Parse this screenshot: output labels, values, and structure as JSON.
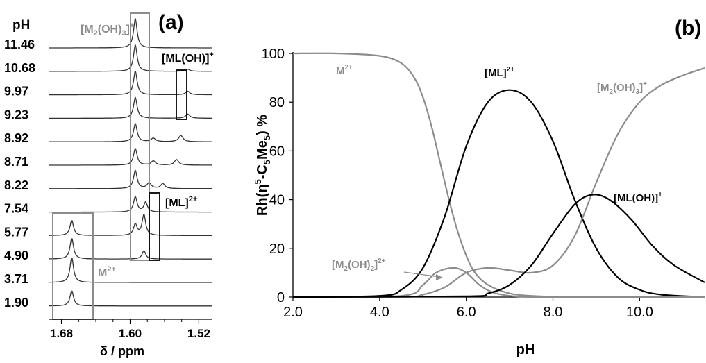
{
  "chart_data": [
    {
      "panel_label": "(a)",
      "type": "line",
      "subtype": "stacked NMR spectra",
      "ylabel": "pH",
      "xlabel": "δ / ppm",
      "x_ticks": [
        "1.68",
        "1.60",
        "1.52"
      ],
      "x_reversed": true,
      "xlim": [
        1.695,
        1.505
      ],
      "spectra": [
        {
          "pH": "11.46",
          "peaks": [
            {
              "ppm": 1.594,
              "height": 42,
              "width": 0.0025
            }
          ]
        },
        {
          "pH": "10.68",
          "peaks": [
            {
              "ppm": 1.594,
              "height": 38,
              "width": 0.0025
            },
            {
              "ppm": 1.533,
              "height": 3,
              "width": 0.003
            }
          ]
        },
        {
          "pH": "9.97",
          "peaks": [
            {
              "ppm": 1.594,
              "height": 34,
              "width": 0.0025
            },
            {
              "ppm": 1.533,
              "height": 5,
              "width": 0.003
            }
          ]
        },
        {
          "pH": "9.23",
          "peaks": [
            {
              "ppm": 1.594,
              "height": 30,
              "width": 0.0025
            },
            {
              "ppm": 1.533,
              "height": 6,
              "width": 0.003
            }
          ]
        },
        {
          "pH": "8.92",
          "peaks": [
            {
              "ppm": 1.594,
              "height": 26,
              "width": 0.0025
            },
            {
              "ppm": 1.573,
              "height": 5,
              "width": 0.003
            },
            {
              "ppm": 1.541,
              "height": 9,
              "width": 0.003
            }
          ]
        },
        {
          "pH": "8.71",
          "peaks": [
            {
              "ppm": 1.594,
              "height": 24,
              "width": 0.0025
            },
            {
              "ppm": 1.573,
              "height": 6,
              "width": 0.003
            },
            {
              "ppm": 1.546,
              "height": 8,
              "width": 0.003
            }
          ]
        },
        {
          "pH": "8.22",
          "peaks": [
            {
              "ppm": 1.594,
              "height": 26,
              "width": 0.0025
            },
            {
              "ppm": 1.578,
              "height": 8,
              "width": 0.003
            },
            {
              "ppm": 1.562,
              "height": 7,
              "width": 0.003
            }
          ]
        },
        {
          "pH": "7.54",
          "peaks": [
            {
              "ppm": 1.594,
              "height": 22,
              "width": 0.0025
            },
            {
              "ppm": 1.582,
              "height": 14,
              "width": 0.0025
            }
          ]
        },
        {
          "pH": "5.77",
          "peaks": [
            {
              "ppm": 1.668,
              "height": 22,
              "width": 0.0025
            },
            {
              "ppm": 1.594,
              "height": 16,
              "width": 0.0025
            },
            {
              "ppm": 1.584,
              "height": 30,
              "width": 0.0025
            }
          ]
        },
        {
          "pH": "4.90",
          "peaks": [
            {
              "ppm": 1.668,
              "height": 30,
              "width": 0.0025
            },
            {
              "ppm": 1.584,
              "height": 12,
              "width": 0.0025
            }
          ]
        },
        {
          "pH": "3.71",
          "peaks": [
            {
              "ppm": 1.668,
              "height": 36,
              "width": 0.0025
            }
          ]
        },
        {
          "pH": "1.90",
          "peaks": [
            {
              "ppm": 1.668,
              "height": 22,
              "width": 0.0025
            }
          ]
        }
      ],
      "annotations": [
        {
          "id": "m2oh3",
          "text": "[M",
          "sub": "2",
          "text2": "(OH)",
          "sub2": "3",
          "text3": "]",
          "sup": "+",
          "color": "#8c8c8c"
        },
        {
          "id": "mloh",
          "text": "[ML(OH)]",
          "sup": "+",
          "color": "#000000"
        },
        {
          "id": "ml",
          "text": "[ML]",
          "sup": "2+",
          "color": "#000000"
        },
        {
          "id": "m2",
          "text": "M",
          "sup": "2+",
          "color": "#8c8c8c"
        }
      ]
    },
    {
      "panel_label": "(b)",
      "type": "line",
      "xlabel": "pH",
      "ylabel": "Rh(η⁵-C₅Me₅) %",
      "ylabel_parts": {
        "a": "Rh(η",
        "sup": "5",
        "b": "-C",
        "sub1": "5",
        "c": "Me",
        "sub2": "5",
        "d": ") %"
      },
      "xlim": [
        2.0,
        11.5
      ],
      "ylim": [
        0,
        100
      ],
      "x_ticks": [
        "2.0",
        "4.0",
        "6.0",
        "8.0",
        "10.0"
      ],
      "y_ticks": [
        "0",
        "20",
        "40",
        "60",
        "80",
        "100"
      ],
      "grid": false,
      "series": [
        {
          "id": "m2",
          "color": "#8c8c8c",
          "x": [
            2.0,
            3.0,
            4.0,
            4.5,
            4.8,
            5.0,
            5.2,
            5.4,
            5.6,
            5.8,
            6.0,
            6.2,
            6.5,
            7.0,
            7.5,
            8.0,
            8.5,
            9.0,
            11.5
          ],
          "y": [
            100,
            100,
            99,
            96,
            90,
            82,
            70,
            55,
            40,
            27,
            17,
            10,
            5,
            1.5,
            0.5,
            0.2,
            0,
            0,
            0
          ]
        },
        {
          "id": "ml",
          "color": "#000000",
          "x": [
            2.0,
            4.0,
            4.5,
            5.0,
            5.5,
            6.0,
            6.5,
            7.0,
            7.5,
            8.0,
            8.5,
            9.0,
            9.5,
            10.0,
            10.5,
            11.5
          ],
          "y": [
            0,
            0.5,
            3,
            12,
            33,
            62,
            80,
            85,
            80,
            64,
            40,
            20,
            8,
            3,
            1,
            0
          ]
        },
        {
          "id": "m2oh2",
          "color": "#8c8c8c",
          "x": [
            2.0,
            4.5,
            5.0,
            5.3,
            5.7,
            6.0,
            6.3,
            6.6,
            7.0,
            7.5,
            8.0,
            11.5
          ],
          "y": [
            0,
            0.5,
            5,
            10,
            12,
            10,
            5,
            2,
            0.5,
            0,
            0,
            0
          ]
        },
        {
          "id": "m2oh3",
          "color": "#8c8c8c",
          "x": [
            2.0,
            4.5,
            5.0,
            5.5,
            6.0,
            6.5,
            7.0,
            7.5,
            8.0,
            8.5,
            9.0,
            9.5,
            10.0,
            10.5,
            11.0,
            11.5
          ],
          "y": [
            0,
            0,
            1,
            4,
            10,
            12,
            11,
            10,
            13,
            25,
            47,
            67,
            80,
            87,
            91,
            94
          ]
        },
        {
          "id": "mloh",
          "color": "#000000",
          "x": [
            2.0,
            6.0,
            6.5,
            7.0,
            7.5,
            8.0,
            8.5,
            8.9,
            9.3,
            9.8,
            10.3,
            10.8,
            11.5
          ],
          "y": [
            0,
            0.3,
            1.5,
            5,
            13,
            26,
            38,
            42,
            40,
            32,
            21,
            13,
            6
          ]
        }
      ],
      "labels": [
        {
          "id": "m2",
          "text": "M",
          "sup": "2+",
          "color": "#8c8c8c"
        },
        {
          "id": "ml",
          "text": "[ML]",
          "sup": "2+",
          "color": "#000000"
        },
        {
          "id": "m2oh3",
          "text": "[M",
          "sub": "2",
          "text2": "(OH)",
          "sub2": "3",
          "text3": "]",
          "sup": "+",
          "color": "#8c8c8c"
        },
        {
          "id": "mloh",
          "text": "[ML(OH)]",
          "sup": "+",
          "color": "#000000"
        },
        {
          "id": "m2oh2",
          "text": "[M",
          "sub": "2",
          "text2": "(OH)",
          "sub2": "2",
          "text3": "]",
          "sup": "2+",
          "color": "#8c8c8c"
        }
      ]
    }
  ]
}
